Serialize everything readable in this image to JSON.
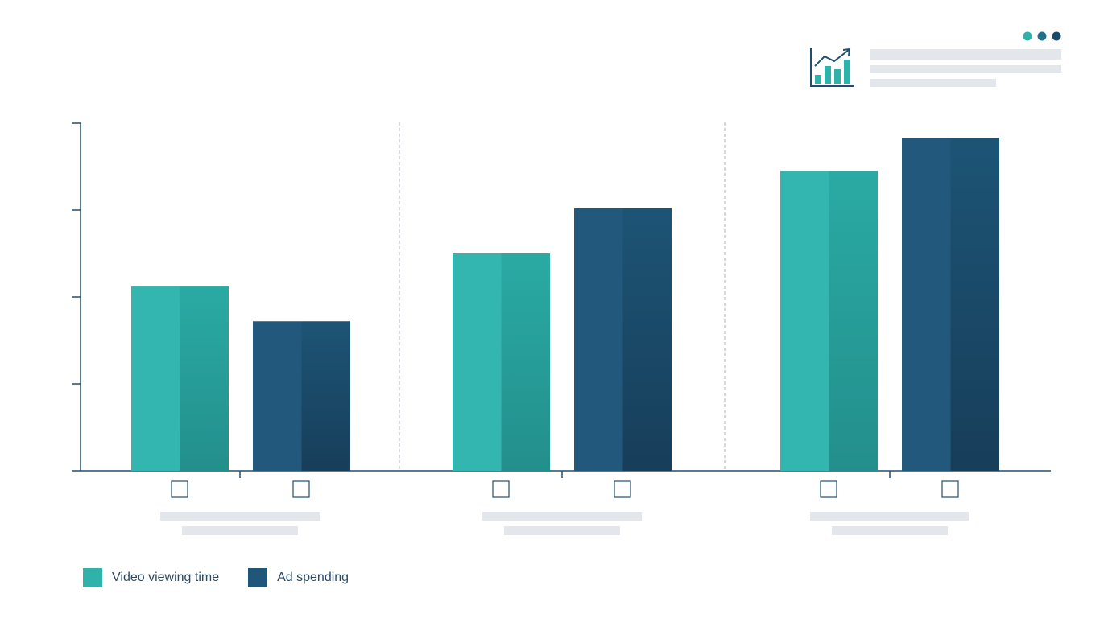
{
  "chart_data": {
    "type": "bar",
    "title": "",
    "xlabel": "",
    "ylabel": "",
    "categories": [
      "",
      "",
      ""
    ],
    "ylim": [
      0,
      4
    ],
    "grid": false,
    "legend_position": "bottom-left",
    "series": [
      {
        "name": "Video viewing time",
        "color": "#2fb2aa",
        "values": [
          2.12,
          2.5,
          3.45
        ]
      },
      {
        "name": "Ad spending",
        "color": "#1f567a",
        "values": [
          1.72,
          3.02,
          3.83
        ]
      }
    ]
  },
  "header": {
    "icon": "bar-chart-growth-icon",
    "dots": [
      "#2fb2aa",
      "#24708a",
      "#1a4a6a"
    ]
  }
}
